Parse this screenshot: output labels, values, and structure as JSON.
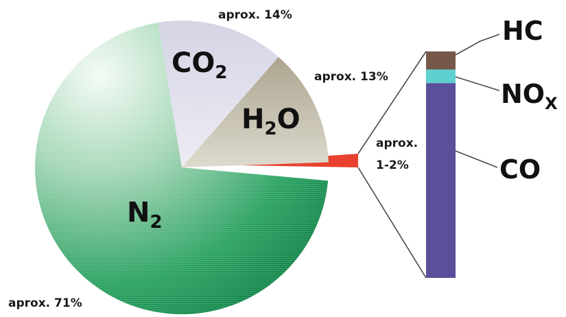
{
  "chart_data": [
    {
      "type": "pie",
      "slices": [
        {
          "label": "N",
          "subscript": "2",
          "percent_label": "aprox. 71%",
          "value": 71,
          "color": "#1e9a5a"
        },
        {
          "label": "CO",
          "subscript": "2",
          "percent_label": "aprox. 14%",
          "value": 14,
          "color": "#c9c8dc"
        },
        {
          "label": "H",
          "subscript": "2",
          "label_suffix": "O",
          "percent_label": "aprox. 13%",
          "value": 13,
          "color": "#b9b29a"
        },
        {
          "label": "",
          "percent_label_lines": [
            "aprox.",
            "1-2%"
          ],
          "value": 2,
          "color": "#e8412e"
        }
      ]
    },
    {
      "type": "bar",
      "stacked": true,
      "segments": [
        {
          "label": "HC",
          "value": 8,
          "color": "#76584a"
        },
        {
          "label": "NO",
          "subscript": "X",
          "value": 6,
          "color": "#5fd0d0"
        },
        {
          "label": "CO",
          "value": 86,
          "color": "#5a4f9a"
        }
      ]
    }
  ]
}
